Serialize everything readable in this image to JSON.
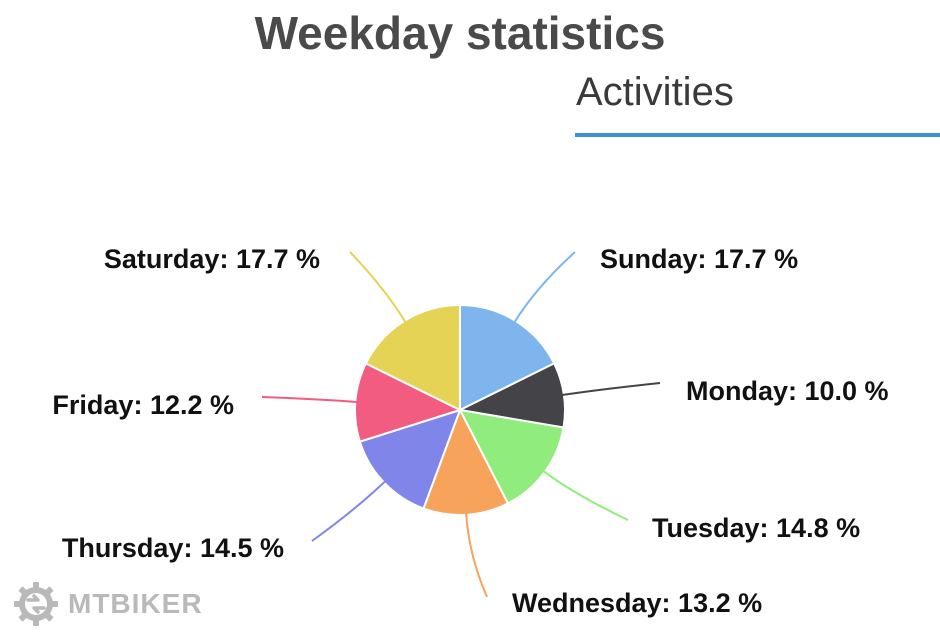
{
  "header": {
    "title": "Weekday statistics",
    "tab_label": "Activities"
  },
  "brand": {
    "name": "MTBIKER"
  },
  "colors": {
    "tab_underline": "#3a8fd8",
    "title": "#4a4a4a"
  },
  "chart_data": {
    "type": "pie",
    "slices": [
      {
        "label": "Sunday",
        "display": "Sunday: 17.7 %",
        "value": 17.7,
        "color": "#7db5ec"
      },
      {
        "label": "Monday",
        "display": "Monday: 10.0 %",
        "value": 10.0,
        "color": "#434348"
      },
      {
        "label": "Tuesday",
        "display": "Tuesday: 14.8 %",
        "value": 14.8,
        "color": "#90ed7d"
      },
      {
        "label": "Wednesday",
        "display": "Wednesday: 13.2 %",
        "value": 13.2,
        "color": "#f7a35c"
      },
      {
        "label": "Thursday",
        "display": "Thursday: 14.5 %",
        "value": 14.5,
        "color": "#8085e9"
      },
      {
        "label": "Friday",
        "display": "Friday: 12.2 %",
        "value": 12.2,
        "color": "#f15c80"
      },
      {
        "label": "Saturday",
        "display": "Saturday: 17.7 %",
        "value": 17.7,
        "color": "#e4d354"
      }
    ]
  }
}
